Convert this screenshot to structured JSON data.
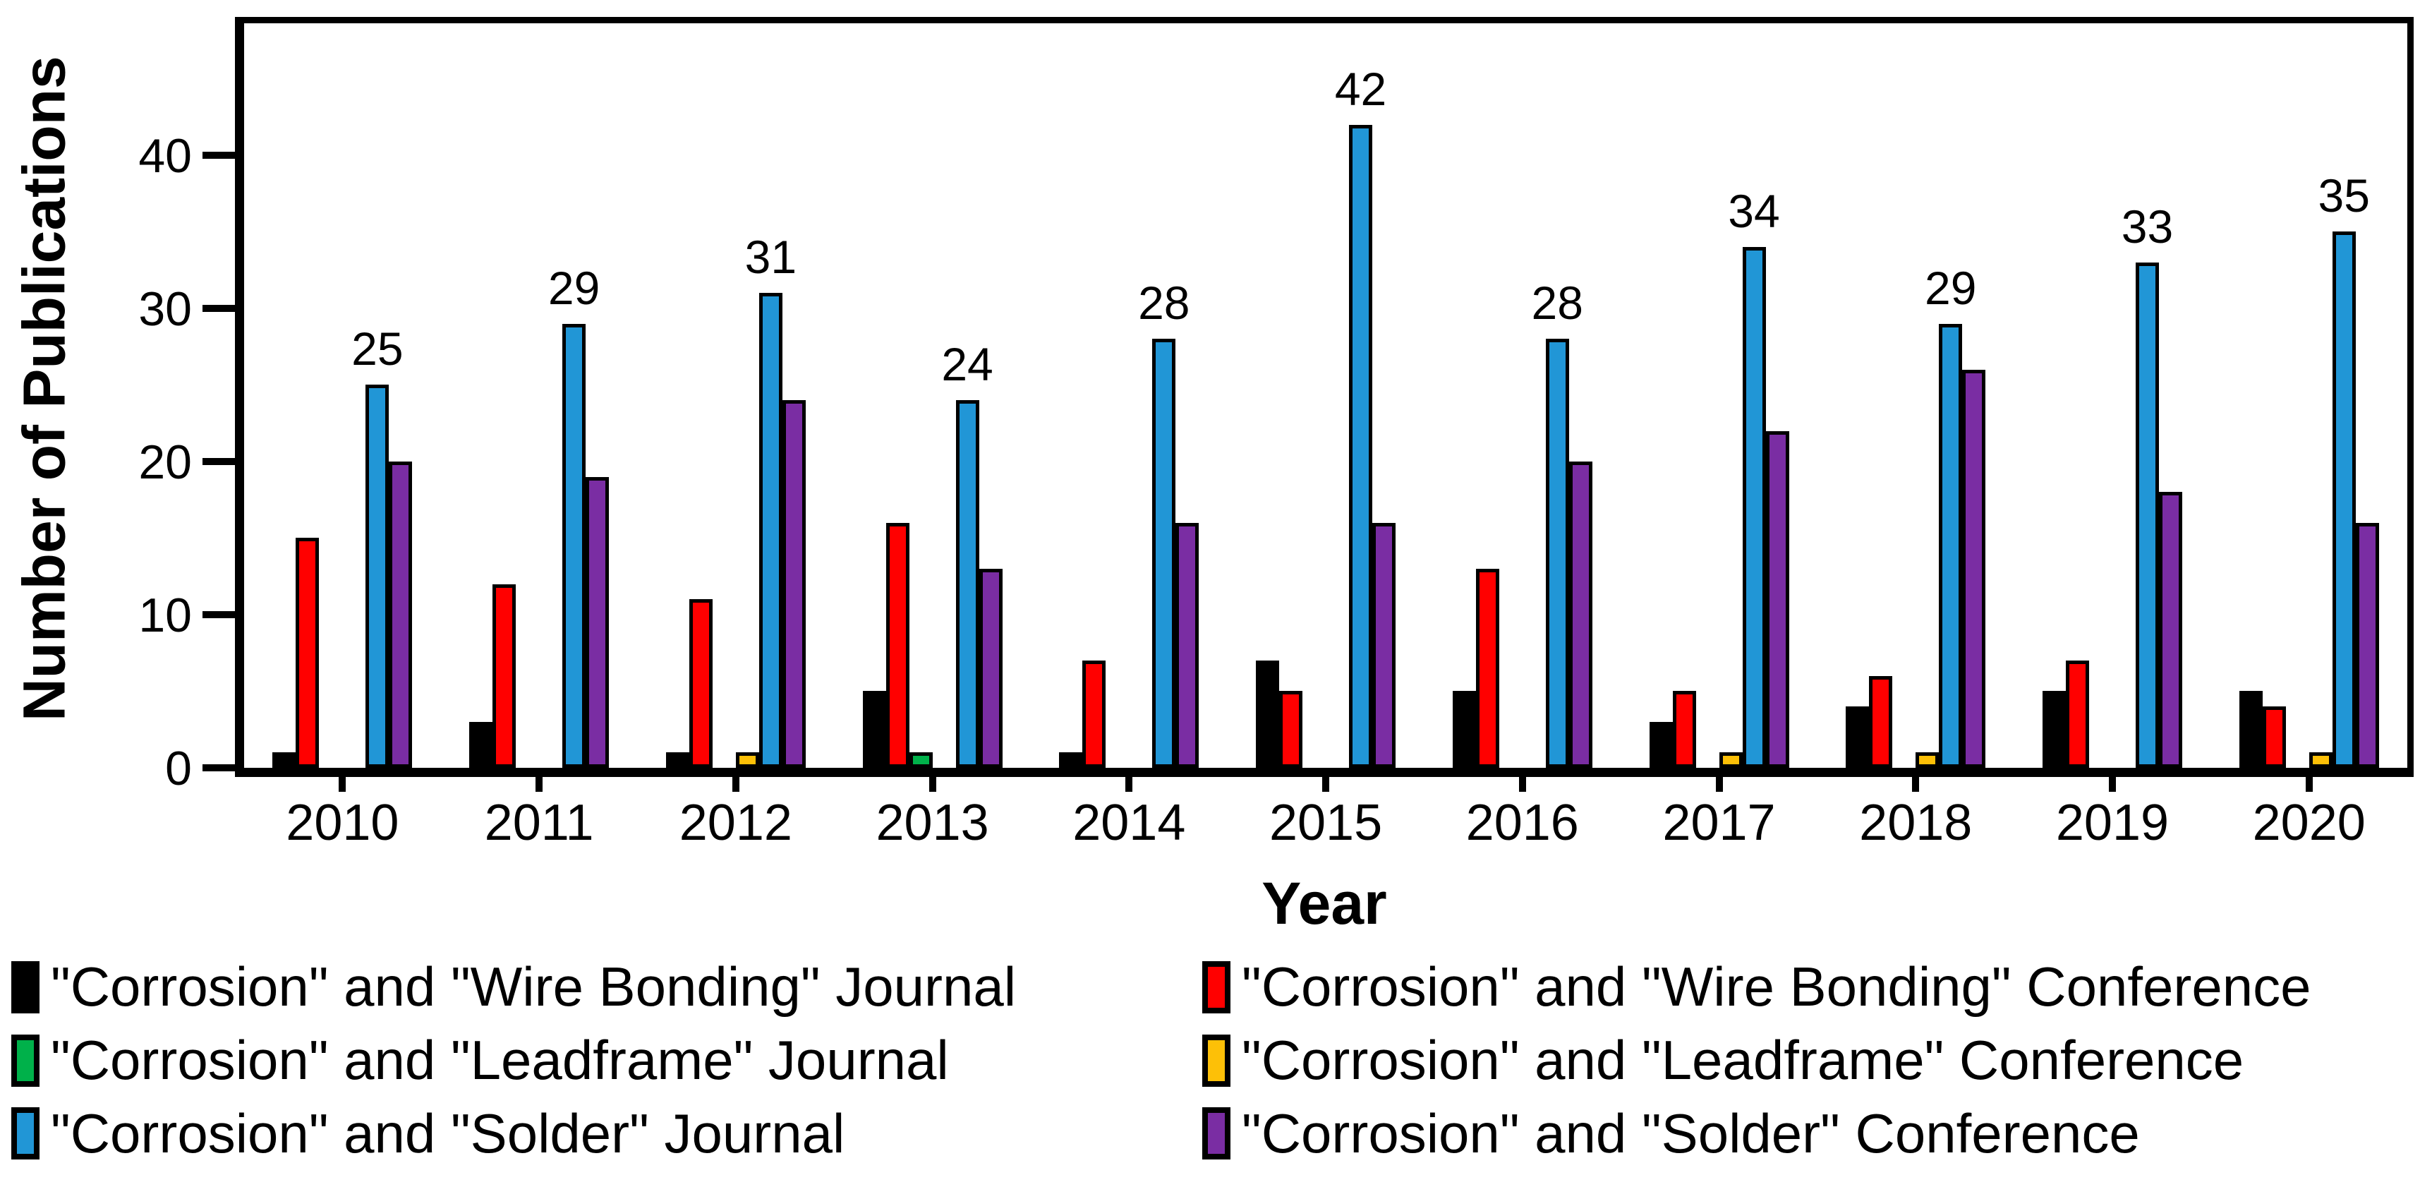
{
  "chart_data": {
    "type": "bar",
    "title": "",
    "xlabel": "Year",
    "ylabel": "Number of Publications",
    "categories": [
      "2010",
      "2011",
      "2012",
      "2013",
      "2014",
      "2015",
      "2016",
      "2017",
      "2018",
      "2019",
      "2020"
    ],
    "yticks": [
      0,
      10,
      20,
      30,
      40
    ],
    "ylim": [
      0,
      48
    ],
    "grid": false,
    "legend_position": "bottom two-column",
    "bar_outline_color": "#000000",
    "series": [
      {
        "name": "\"Corrosion\" and \"Wire Bonding\" Journal",
        "color": "#000000",
        "values": [
          1,
          3,
          1,
          5,
          1,
          7,
          5,
          3,
          4,
          5,
          5
        ],
        "data_labels": false
      },
      {
        "name": "\"Corrosion\" and \"Wire Bonding\" Conference",
        "color": "#FF0000",
        "values": [
          15,
          12,
          11,
          16,
          7,
          5,
          13,
          5,
          6,
          7,
          4
        ],
        "data_labels": false
      },
      {
        "name": "\"Corrosion\" and \"Leadframe\" Journal",
        "color": "#00B14A",
        "values": [
          0,
          0,
          0,
          1,
          0,
          0,
          0,
          0,
          0,
          0,
          0
        ],
        "data_labels": false
      },
      {
        "name": "\"Corrosion\" and \"Leadframe\" Conference",
        "color": "#FDC007",
        "values": [
          0,
          0,
          1,
          0,
          0,
          0,
          0,
          1,
          1,
          0,
          1
        ],
        "data_labels": false
      },
      {
        "name": "\"Corrosion\" and \"Solder\" Journal",
        "color": "#2196D6",
        "values": [
          25,
          29,
          31,
          24,
          28,
          42,
          28,
          34,
          29,
          33,
          35
        ],
        "data_labels": true
      },
      {
        "name": "\"Corrosion\" and \"Solder\" Conference",
        "color": "#7A2DA3",
        "values": [
          20,
          19,
          24,
          13,
          16,
          16,
          20,
          22,
          26,
          18,
          16
        ],
        "data_labels": false
      }
    ]
  }
}
